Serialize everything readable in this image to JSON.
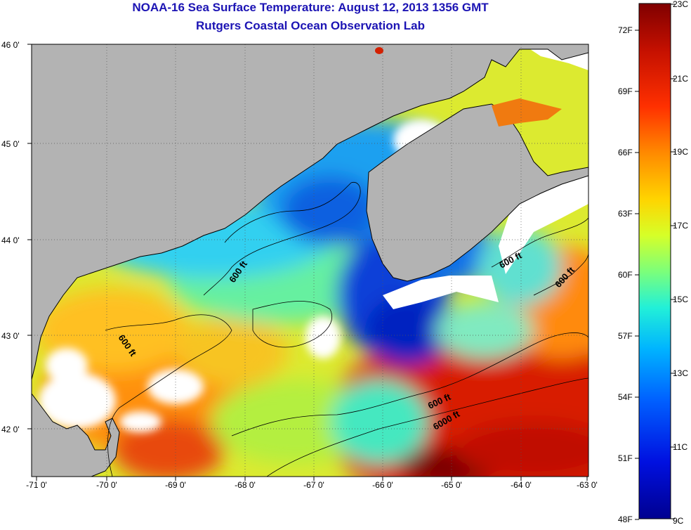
{
  "header": {
    "title": "NOAA-16 Sea Surface Temperature:  August 12, 2013 1356 GMT",
    "subtitle": "Rutgers Coastal Ocean Observation Lab"
  },
  "map": {
    "lon_ticks": [
      "-71 0'",
      "-70 0'",
      "-69 0'",
      "-68 0'",
      "-67 0'",
      "-66 0'",
      "-65 0'",
      "-64 0'",
      "-63 0'"
    ],
    "lat_ticks": [
      "46 0'",
      "45 0'",
      "44 0'",
      "43 0'",
      "42 0'"
    ],
    "contour_labels": [
      "600 ft",
      "600 ft",
      "600 ft",
      "600 ft",
      "600 ft",
      "6000 ft"
    ],
    "colors": {
      "land": "#b3b3b3",
      "cloud": "#ffffff",
      "coast": "#000000"
    }
  },
  "colorbar": {
    "fahrenheit": [
      "72F",
      "69F",
      "66F",
      "63F",
      "60F",
      "57F",
      "54F",
      "51F",
      "48F"
    ],
    "celsius": [
      "23C",
      "21C",
      "19C",
      "17C",
      "15C",
      "13C",
      "11C",
      "9C"
    ],
    "gradient": [
      "#800000",
      "#c41000",
      "#ff3000",
      "#ff8a00",
      "#ffd400",
      "#d6ff28",
      "#7cff7a",
      "#22f0d8",
      "#00b4ff",
      "#0060ff",
      "#0010e0",
      "#000090"
    ]
  }
}
